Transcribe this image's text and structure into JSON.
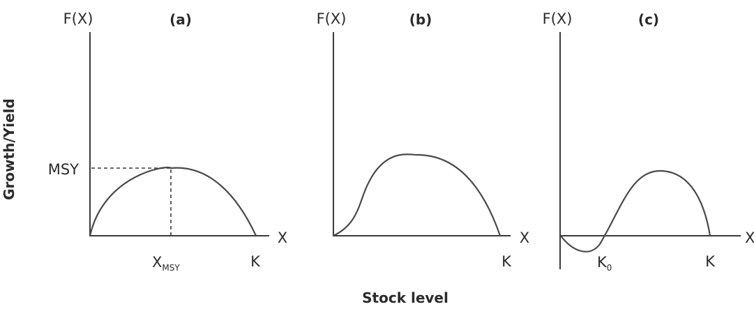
{
  "figure": {
    "y_axis_title": "Growth/Yield",
    "x_axis_title": "Stock level"
  },
  "panels": [
    {
      "id": "a",
      "title": "(a)",
      "y_label": "F(X)",
      "x_label": "X",
      "msy_label": "MSY",
      "xmsy_main": "X",
      "xmsy_sub": "MSY",
      "k_label": "K"
    },
    {
      "id": "b",
      "title": "(b)",
      "y_label": "F(X)",
      "x_label": "X",
      "k_label": "K"
    },
    {
      "id": "c",
      "title": "(c)",
      "y_label": "F(X)",
      "x_label": "X",
      "k0_main": "K",
      "k0_sub": "0",
      "k_label": "K"
    }
  ],
  "colors": {
    "text": "#2b2b2b",
    "lines": "#3a3a3a",
    "background": "#ffffff"
  }
}
